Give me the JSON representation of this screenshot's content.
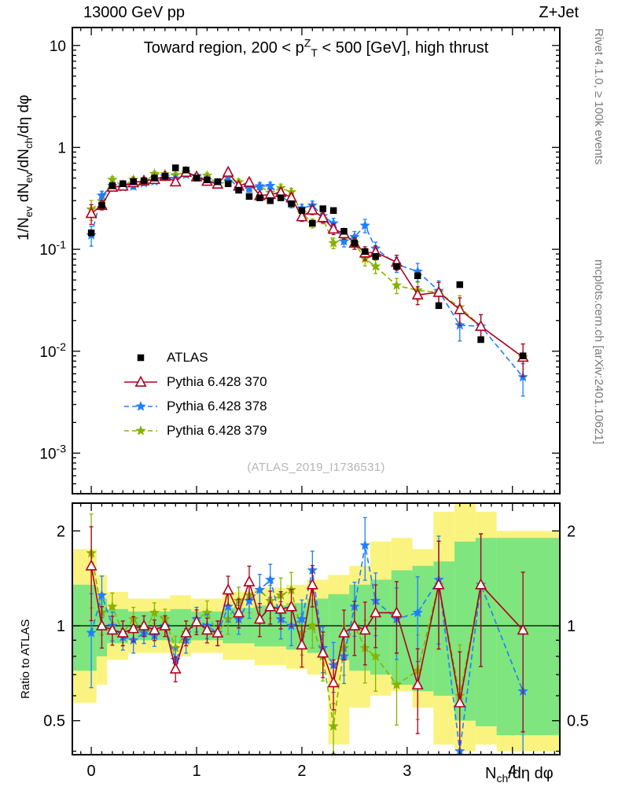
{
  "header": {
    "left": "13000 GeV pp",
    "right": "Z+Jet"
  },
  "watermark": "(ATLAS_2019_I1736531)",
  "side_captions": {
    "top": "Rivet 4.1.0, ≥ 100k events",
    "bottom": "mcplots.cern.ch [arXiv:2401.10621]"
  },
  "chart_data": {
    "type": "line",
    "title": "Toward region, 200 < p^{Z}_{T} < 500 [GeV], high thrust",
    "xlabel": "N_{ch}/dη dφ",
    "ylabel_main": "1/N_{ev} dN_{ev}/dN_{ch}/dη dφ",
    "ylabel_ratio": "Ratio to ATLAS",
    "x_range": [
      -0.18,
      4.45
    ],
    "y_range_main": [
      0.0004,
      15
    ],
    "y_range_ratio": [
      0.39,
      2.45
    ],
    "x_ticks": [
      0,
      1,
      2,
      3,
      4
    ],
    "y_ticks_main": [
      {
        "v": 10,
        "label": "10"
      },
      {
        "v": 1,
        "label": "1"
      },
      {
        "v": 0.1,
        "label": "10^{-1}"
      },
      {
        "v": 0.01,
        "label": "10^{-2}"
      },
      {
        "v": 0.001,
        "label": "10^{-3}"
      }
    ],
    "y_ticks_ratio": [
      {
        "v": 2,
        "label": "2"
      },
      {
        "v": 1,
        "label": "1"
      },
      {
        "v": 0.5,
        "label": "0.5"
      }
    ],
    "x": [
      0.0,
      0.1,
      0.2,
      0.3,
      0.4,
      0.5,
      0.6,
      0.7,
      0.8,
      0.9,
      1.0,
      1.1,
      1.2,
      1.3,
      1.4,
      1.5,
      1.6,
      1.7,
      1.8,
      1.9,
      2.0,
      2.1,
      2.2,
      2.3,
      2.4,
      2.5,
      2.6,
      2.7,
      2.9,
      3.1,
      3.3,
      3.5,
      3.7,
      4.1
    ],
    "rel_err": [
      0.22,
      0.1,
      0.07,
      0.06,
      0.06,
      0.05,
      0.05,
      0.05,
      0.06,
      0.06,
      0.06,
      0.06,
      0.06,
      0.07,
      0.07,
      0.08,
      0.08,
      0.08,
      0.09,
      0.09,
      0.1,
      0.1,
      0.11,
      0.12,
      0.12,
      0.13,
      0.15,
      0.15,
      0.17,
      0.2,
      0.25,
      0.3,
      0.3,
      0.35
    ],
    "series": [
      {
        "name": "ATLAS",
        "marker": "square",
        "color": "#000000",
        "line": "none",
        "values": [
          0.145,
          0.27,
          0.42,
          0.44,
          0.46,
          0.47,
          0.5,
          0.52,
          0.63,
          0.6,
          0.5,
          0.48,
          0.46,
          0.44,
          0.38,
          0.33,
          0.32,
          0.3,
          0.32,
          0.28,
          0.24,
          0.18,
          0.25,
          0.24,
          0.15,
          0.115,
          0.095,
          0.085,
          0.068,
          0.055,
          0.028,
          0.045,
          0.013,
          0.009
        ]
      },
      {
        "name": "Pythia 6.428 370",
        "marker": "triangle-open",
        "color": "#b00020",
        "line": "solid",
        "ratio_to_data": [
          1.55,
          1.0,
          0.97,
          0.95,
          0.98,
          1.0,
          0.97,
          1.0,
          0.73,
          0.95,
          1.03,
          0.97,
          0.95,
          1.3,
          1.1,
          1.38,
          1.05,
          1.15,
          1.13,
          1.15,
          0.87,
          1.35,
          0.82,
          0.66,
          0.95,
          1.0,
          0.97,
          1.1,
          1.1,
          0.65,
          1.35,
          0.57,
          1.35,
          0.97
        ]
      },
      {
        "name": "Pythia 6.428 378",
        "marker": "star",
        "color": "#1e7fff",
        "line": "dashed",
        "ratio_to_data": [
          0.95,
          1.25,
          1.0,
          0.92,
          0.9,
          0.95,
          0.93,
          1.0,
          0.78,
          0.9,
          1.05,
          1.0,
          0.95,
          1.15,
          1.05,
          1.2,
          1.3,
          1.4,
          1.05,
          1.0,
          1.05,
          1.5,
          0.85,
          0.75,
          0.8,
          1.15,
          1.8,
          1.2,
          1.05,
          1.1,
          1.4,
          0.4,
          1.35,
          0.62
        ]
      },
      {
        "name": "Pythia 6.428 379",
        "marker": "star",
        "color": "#86b300",
        "line": "dashed",
        "ratio_to_data": [
          1.7,
          1.1,
          1.15,
          0.95,
          1.05,
          0.95,
          1.1,
          1.05,
          0.85,
          0.95,
          1.05,
          1.1,
          0.95,
          1.05,
          1.2,
          1.25,
          1.3,
          1.2,
          1.25,
          1.3,
          0.95,
          1.0,
          0.8,
          0.48,
          0.85,
          1.0,
          0.85,
          0.8,
          0.65,
          0.72,
          1.35,
          0.6,
          1.35,
          0.97
        ]
      }
    ],
    "uncertainty_bands": {
      "outer_color": "#fbf380",
      "inner_color": "#7fe57f",
      "outer": [
        [
          -0.18,
          0.05,
          0.57,
          1.75
        ],
        [
          0.05,
          0.15,
          0.65,
          1.45
        ],
        [
          0.15,
          0.35,
          0.78,
          1.28
        ],
        [
          0.35,
          0.75,
          0.82,
          1.22
        ],
        [
          0.75,
          0.95,
          0.8,
          1.25
        ],
        [
          0.95,
          1.25,
          0.82,
          1.22
        ],
        [
          1.25,
          1.55,
          0.78,
          1.28
        ],
        [
          1.55,
          1.85,
          0.75,
          1.32
        ],
        [
          1.85,
          2.05,
          0.73,
          1.35
        ],
        [
          2.05,
          2.25,
          0.7,
          1.4
        ],
        [
          2.25,
          2.45,
          0.42,
          1.45
        ],
        [
          2.45,
          2.65,
          0.55,
          1.55
        ],
        [
          2.65,
          2.85,
          0.6,
          1.85
        ],
        [
          2.85,
          3.05,
          0.62,
          1.9
        ],
        [
          3.05,
          3.25,
          0.55,
          1.75
        ],
        [
          3.25,
          3.45,
          0.42,
          2.3
        ],
        [
          3.45,
          3.65,
          0.4,
          2.6
        ],
        [
          3.65,
          3.85,
          0.42,
          2.3
        ],
        [
          3.85,
          4.45,
          0.4,
          2.0
        ]
      ],
      "inner": [
        [
          -0.18,
          0.05,
          0.72,
          1.35
        ],
        [
          0.05,
          0.15,
          0.8,
          1.22
        ],
        [
          0.15,
          0.35,
          0.88,
          1.13
        ],
        [
          0.35,
          0.75,
          0.9,
          1.11
        ],
        [
          0.75,
          0.95,
          0.88,
          1.13
        ],
        [
          0.95,
          1.25,
          0.9,
          1.11
        ],
        [
          1.25,
          1.55,
          0.88,
          1.14
        ],
        [
          1.55,
          1.85,
          0.86,
          1.16
        ],
        [
          1.85,
          2.05,
          0.84,
          1.18
        ],
        [
          2.05,
          2.25,
          0.82,
          1.22
        ],
        [
          2.25,
          2.45,
          0.78,
          1.26
        ],
        [
          2.45,
          2.65,
          0.72,
          1.35
        ],
        [
          2.65,
          2.85,
          0.7,
          1.4
        ],
        [
          2.85,
          3.05,
          0.65,
          1.5
        ],
        [
          3.05,
          3.25,
          0.62,
          1.55
        ],
        [
          3.25,
          3.45,
          0.6,
          1.6
        ],
        [
          3.45,
          3.65,
          0.5,
          1.85
        ],
        [
          3.65,
          3.85,
          0.48,
          1.9
        ],
        [
          3.85,
          4.45,
          0.45,
          1.9
        ]
      ]
    }
  }
}
